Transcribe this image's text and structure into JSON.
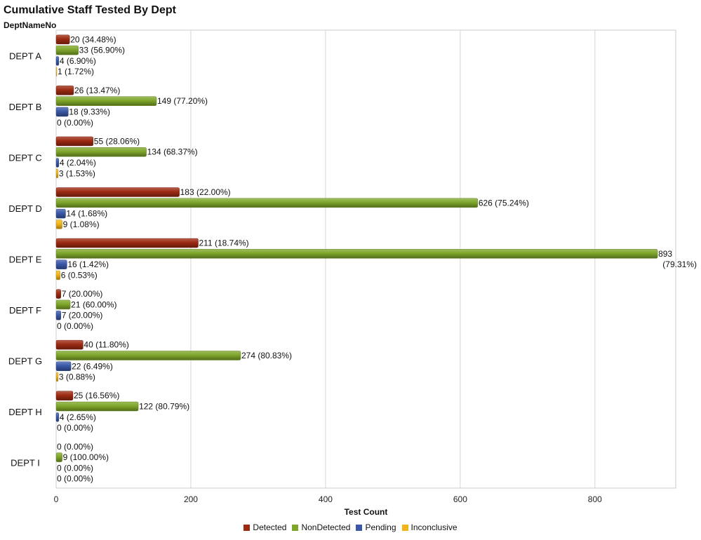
{
  "chart_data": {
    "type": "bar",
    "orientation": "horizontal",
    "title": "Cumulative Staff Tested By Dept",
    "ylabel": "DeptNameNo",
    "xlabel": "Test Count",
    "xlim": [
      0,
      920
    ],
    "xticks": [
      0,
      200,
      400,
      600,
      800
    ],
    "grid": true,
    "legend_position": "bottom",
    "categories": [
      "DEPT A",
      "DEPT B",
      "DEPT C",
      "DEPT D",
      "DEPT E",
      "DEPT F",
      "DEPT G",
      "DEPT H",
      "DEPT I"
    ],
    "series": [
      {
        "name": "Detected",
        "color": "#9c2a12",
        "values": [
          20,
          26,
          55,
          183,
          211,
          7,
          40,
          25,
          0
        ],
        "labels": [
          "20 (34.48%)",
          "26 (13.47%)",
          "55 (28.06%)",
          "183 (22.00%)",
          "211 (18.74%)",
          "7 (20.00%)",
          "40 (11.80%)",
          "25 (16.56%)",
          "0 (0.00%)"
        ]
      },
      {
        "name": "NonDetected",
        "color": "#7ea62a",
        "values": [
          33,
          149,
          134,
          626,
          893,
          21,
          274,
          122,
          9
        ],
        "labels": [
          "33 (56.90%)",
          "149 (77.20%)",
          "134 (68.37%)",
          "626 (75.24%)",
          "893 (79.31%)",
          "21 (60.00%)",
          "274 (80.83%)",
          "122 (80.79%)",
          "9 (100.00%)"
        ]
      },
      {
        "name": "Pending",
        "color": "#3a57a8",
        "values": [
          4,
          18,
          4,
          14,
          16,
          7,
          22,
          4,
          0
        ],
        "labels": [
          "4 (6.90%)",
          "18 (9.33%)",
          "4 (2.04%)",
          "14 (1.68%)",
          "16 (1.42%)",
          "7 (20.00%)",
          "22 (6.49%)",
          "4 (2.65%)",
          "0 (0.00%)"
        ]
      },
      {
        "name": "Inconclusive",
        "color": "#f2b419",
        "values": [
          1,
          0,
          3,
          9,
          6,
          0,
          3,
          0,
          0
        ],
        "labels": [
          "1 (1.72%)",
          "0 (0.00%)",
          "3 (1.53%)",
          "9 (1.08%)",
          "6 (0.53%)",
          "0 (0.00%)",
          "3 (0.88%)",
          "0 (0.00%)",
          "0 (0.00%)"
        ]
      }
    ]
  }
}
